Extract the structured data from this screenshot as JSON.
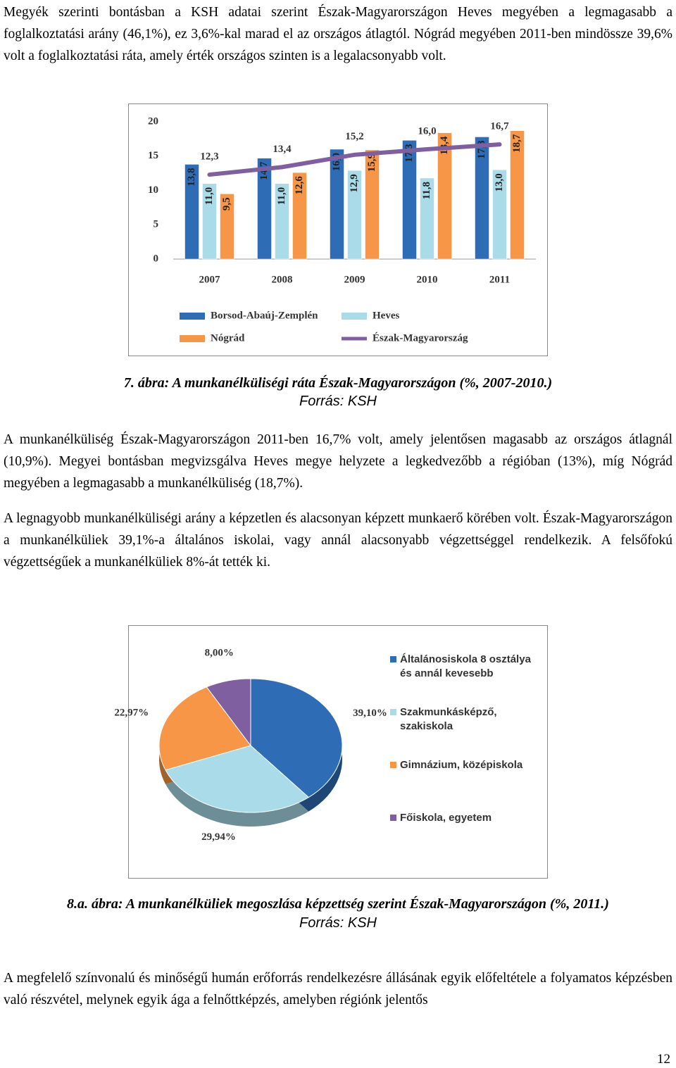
{
  "paragraphs": [
    "Megyék szerinti bontásban a KSH adatai szerint Észak-Magyarországon Heves megyében a legmagasabb a foglalkoztatási arány (46,1%), ez 3,6%-kal marad el az országos átlagtól. Nógrád megyében 2011-ben mindössze 39,6% volt a foglalkoztatási ráta, amely érték országos szinten is a legalacsonyabb volt.",
    "A munkanélküliség Észak-Magyarországon 2011-ben 16,7% volt, amely jelentősen magasabb az országos átlagnál (10,9%). Megyei bontásban megvizsgálva Heves megye helyzete a legkedvezőbb a régióban (13%), míg Nógrád megyében a legmagasabb a munkanélküliség (18,7%).",
    "A legnagyobb munkanélküliségi arány a képzetlen és alacsonyan képzett munkaerő körében volt. Észak-Magyarországon a munkanélküliek 39,1%-a általános iskolai, vagy annál alacsonyabb végzettséggel rendelkezik. A felsőfokú végzettségűek a munkanélküliek 8%-át tették ki.",
    "A megfelelő színvonalú és minőségű humán erőforrás rendelkezésre állásának egyik előfeltétele a folyamatos képzésben való részvétel, melynek egyik ága a felnőttképzés, amelyben régiónk jelentős"
  ],
  "page_number": "12",
  "chart_data": [
    {
      "type": "bar",
      "title": "7. ábra: A munkanélküliségi ráta Észak-Magyarországon (%, 2007-2010.)",
      "source": "Forrás: KSH",
      "categories": [
        "2007",
        "2008",
        "2009",
        "2010",
        "2011"
      ],
      "ylim": [
        0,
        20
      ],
      "yticks": [
        0,
        5,
        10,
        15,
        20
      ],
      "series": [
        {
          "name": "Borsod-Abaúj-Zemplén",
          "color": "#2e6db5",
          "values": [
            13.8,
            14.7,
            16.0,
            17.3,
            17.8
          ],
          "value_labels": [
            "13,8",
            "14,7",
            "16,0",
            "17,3",
            "17,8"
          ]
        },
        {
          "name": "Heves",
          "color": "#a9dbe9",
          "values": [
            11.0,
            11.0,
            12.9,
            11.8,
            13.0
          ],
          "value_labels": [
            "11,0",
            "11,0",
            "12,9",
            "11,8",
            "13,0"
          ]
        },
        {
          "name": "Nógrád",
          "color": "#f79646",
          "values": [
            9.5,
            12.6,
            15.9,
            18.4,
            18.7
          ],
          "value_labels": [
            "9,5",
            "12,6",
            "15,9",
            "18,4",
            "18,7"
          ]
        },
        {
          "name": "Észak-Magyarország",
          "type": "line",
          "color": "#7f5fa0",
          "values": [
            12.3,
            13.4,
            15.2,
            16.0,
            16.7
          ],
          "value_labels": [
            "12,3",
            "13,4",
            "15,2",
            "16,0",
            "16,7"
          ]
        }
      ]
    },
    {
      "type": "pie",
      "title": "8.a. ábra: A munkanélküliek megoszlása képzettség szerint Észak-Magyarországon (%, 2011.)",
      "source": "Forrás: KSH",
      "categories": [
        "Általánosiskola 8 osztálya és annál kevesebb",
        "Szakmunkásképző, szakiskola",
        "Gimnázium, középiskola",
        "Főiskola, egyetem"
      ],
      "values": [
        39.1,
        29.94,
        22.97,
        8.0
      ],
      "value_labels": [
        "39,10%",
        "29,94%",
        "22,97%",
        "8,00%"
      ],
      "colors": [
        "#2e6db5",
        "#a9dbe9",
        "#f79646",
        "#7f5fa0"
      ]
    }
  ]
}
